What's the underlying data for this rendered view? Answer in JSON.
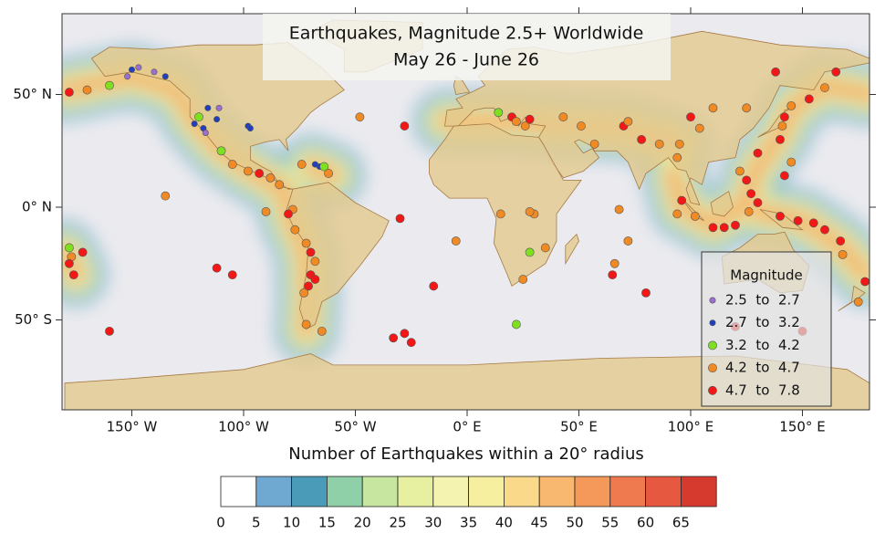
{
  "map": {
    "title": [
      "Earthquakes, Magnitude 2.5+ Worldwide",
      "May 26 - June 26"
    ],
    "lon_ticks": [
      {
        "value": -150,
        "label": "150° W"
      },
      {
        "value": -100,
        "label": "100° W"
      },
      {
        "value": -50,
        "label": "50° W"
      },
      {
        "value": 0,
        "label": "0° E"
      },
      {
        "value": 50,
        "label": "50° E"
      },
      {
        "value": 100,
        "label": "100° E"
      },
      {
        "value": 150,
        "label": "150° E"
      }
    ],
    "lat_ticks": [
      {
        "value": 50,
        "label": "50° N"
      },
      {
        "value": 0,
        "label": "0° N"
      },
      {
        "value": -50,
        "label": "50° S"
      }
    ],
    "legend": {
      "title": "Magnitude",
      "entries": [
        {
          "label": "2.5  to  2.7",
          "color": "#9b6fd0"
        },
        {
          "label": "2.7  to  3.2",
          "color": "#1f3fbf"
        },
        {
          "label": "3.2  to  4.2",
          "color": "#7fe020"
        },
        {
          "label": "4.2  to  4.7",
          "color": "#f08a24"
        },
        {
          "label": "4.7  to  7.8",
          "color": "#f21818"
        }
      ]
    },
    "points": [
      {
        "lon": -178,
        "lat": 51,
        "class": 4
      },
      {
        "lon": -170,
        "lat": 52,
        "class": 3
      },
      {
        "lon": -160,
        "lat": 54,
        "class": 2
      },
      {
        "lon": -152,
        "lat": 58,
        "class": 0
      },
      {
        "lon": -150,
        "lat": 61,
        "class": 1
      },
      {
        "lon": -147,
        "lat": 62,
        "class": 0
      },
      {
        "lon": -140,
        "lat": 60,
        "class": 0
      },
      {
        "lon": -135,
        "lat": 58,
        "class": 1
      },
      {
        "lon": -122,
        "lat": 37,
        "class": 1
      },
      {
        "lon": -118,
        "lat": 35,
        "class": 1
      },
      {
        "lon": -117,
        "lat": 33,
        "class": 0
      },
      {
        "lon": -120,
        "lat": 40,
        "class": 2
      },
      {
        "lon": -116,
        "lat": 44,
        "class": 1
      },
      {
        "lon": -112,
        "lat": 39,
        "class": 1
      },
      {
        "lon": -111,
        "lat": 44,
        "class": 0
      },
      {
        "lon": -98,
        "lat": 36,
        "class": 1
      },
      {
        "lon": -97,
        "lat": 35,
        "class": 1
      },
      {
        "lon": -105,
        "lat": 19,
        "class": 3
      },
      {
        "lon": -98,
        "lat": 16,
        "class": 3
      },
      {
        "lon": -93,
        "lat": 15,
        "class": 4
      },
      {
        "lon": -88,
        "lat": 13,
        "class": 3
      },
      {
        "lon": -84,
        "lat": 10,
        "class": 3
      },
      {
        "lon": -110,
        "lat": 25,
        "class": 2
      },
      {
        "lon": -66,
        "lat": 18,
        "class": 1
      },
      {
        "lon": -64,
        "lat": 18,
        "class": 2
      },
      {
        "lon": -68,
        "lat": 19,
        "class": 1
      },
      {
        "lon": -62,
        "lat": 15,
        "class": 3
      },
      {
        "lon": -74,
        "lat": 19,
        "class": 3
      },
      {
        "lon": -78,
        "lat": -1,
        "class": 3
      },
      {
        "lon": -80,
        "lat": -3,
        "class": 4
      },
      {
        "lon": -77,
        "lat": -10,
        "class": 3
      },
      {
        "lon": -72,
        "lat": -16,
        "class": 3
      },
      {
        "lon": -70,
        "lat": -20,
        "class": 4
      },
      {
        "lon": -68,
        "lat": -24,
        "class": 3
      },
      {
        "lon": -70,
        "lat": -30,
        "class": 4
      },
      {
        "lon": -71,
        "lat": -35,
        "class": 4
      },
      {
        "lon": -73,
        "lat": -38,
        "class": 3
      },
      {
        "lon": -68,
        "lat": -32,
        "class": 4
      },
      {
        "lon": -72,
        "lat": -52,
        "class": 3
      },
      {
        "lon": -65,
        "lat": -55,
        "class": 3
      },
      {
        "lon": -33,
        "lat": -58,
        "class": 4
      },
      {
        "lon": -28,
        "lat": -56,
        "class": 4
      },
      {
        "lon": -30,
        "lat": -5,
        "class": 4
      },
      {
        "lon": -90,
        "lat": -2,
        "class": 3
      },
      {
        "lon": -112,
        "lat": -27,
        "class": 4
      },
      {
        "lon": -105,
        "lat": -30,
        "class": 4
      },
      {
        "lon": -15,
        "lat": -35,
        "class": 4
      },
      {
        "lon": -28,
        "lat": 36,
        "class": 4
      },
      {
        "lon": -48,
        "lat": 40,
        "class": 3
      },
      {
        "lon": -135,
        "lat": 5,
        "class": 3
      },
      {
        "lon": -178,
        "lat": -18,
        "class": 2
      },
      {
        "lon": -177,
        "lat": -22,
        "class": 3
      },
      {
        "lon": -176,
        "lat": -30,
        "class": 4
      },
      {
        "lon": -178,
        "lat": -25,
        "class": 4
      },
      {
        "lon": -172,
        "lat": -20,
        "class": 4
      },
      {
        "lon": 20,
        "lat": 40,
        "class": 4
      },
      {
        "lon": 22,
        "lat": 38,
        "class": 3
      },
      {
        "lon": 26,
        "lat": 36,
        "class": 3
      },
      {
        "lon": 28,
        "lat": 39,
        "class": 4
      },
      {
        "lon": 14,
        "lat": 42,
        "class": 2
      },
      {
        "lon": 43,
        "lat": 40,
        "class": 3
      },
      {
        "lon": 51,
        "lat": 36,
        "class": 3
      },
      {
        "lon": 57,
        "lat": 28,
        "class": 3
      },
      {
        "lon": 70,
        "lat": 36,
        "class": 4
      },
      {
        "lon": 72,
        "lat": 38,
        "class": 3
      },
      {
        "lon": 78,
        "lat": 30,
        "class": 4
      },
      {
        "lon": 86,
        "lat": 28,
        "class": 3
      },
      {
        "lon": 95,
        "lat": 28,
        "class": 3
      },
      {
        "lon": 94,
        "lat": 22,
        "class": 3
      },
      {
        "lon": 100,
        "lat": 40,
        "class": 4
      },
      {
        "lon": 104,
        "lat": 35,
        "class": 3
      },
      {
        "lon": 110,
        "lat": 44,
        "class": 3
      },
      {
        "lon": 125,
        "lat": 44,
        "class": 3
      },
      {
        "lon": 142,
        "lat": 40,
        "class": 4
      },
      {
        "lon": 141,
        "lat": 36,
        "class": 3
      },
      {
        "lon": 140,
        "lat": 30,
        "class": 4
      },
      {
        "lon": 145,
        "lat": 20,
        "class": 3
      },
      {
        "lon": 142,
        "lat": 14,
        "class": 4
      },
      {
        "lon": 130,
        "lat": 24,
        "class": 4
      },
      {
        "lon": 125,
        "lat": 12,
        "class": 4
      },
      {
        "lon": 127,
        "lat": 6,
        "class": 4
      },
      {
        "lon": 122,
        "lat": 16,
        "class": 3
      },
      {
        "lon": 130,
        "lat": 2,
        "class": 4
      },
      {
        "lon": 126,
        "lat": -2,
        "class": 3
      },
      {
        "lon": 120,
        "lat": -8,
        "class": 4
      },
      {
        "lon": 115,
        "lat": -9,
        "class": 4
      },
      {
        "lon": 110,
        "lat": -9,
        "class": 4
      },
      {
        "lon": 102,
        "lat": -4,
        "class": 3
      },
      {
        "lon": 96,
        "lat": 3,
        "class": 4
      },
      {
        "lon": 94,
        "lat": -3,
        "class": 3
      },
      {
        "lon": 140,
        "lat": -4,
        "class": 4
      },
      {
        "lon": 148,
        "lat": -6,
        "class": 4
      },
      {
        "lon": 155,
        "lat": -7,
        "class": 4
      },
      {
        "lon": 160,
        "lat": -10,
        "class": 4
      },
      {
        "lon": 167,
        "lat": -15,
        "class": 4
      },
      {
        "lon": 168,
        "lat": -21,
        "class": 3
      },
      {
        "lon": 178,
        "lat": -33,
        "class": 4
      },
      {
        "lon": 175,
        "lat": -42,
        "class": 3
      },
      {
        "lon": 145,
        "lat": 45,
        "class": 3
      },
      {
        "lon": 153,
        "lat": 48,
        "class": 4
      },
      {
        "lon": 160,
        "lat": 53,
        "class": 3
      },
      {
        "lon": 165,
        "lat": 60,
        "class": 4
      },
      {
        "lon": 138,
        "lat": 60,
        "class": 4
      },
      {
        "lon": 65,
        "lat": -30,
        "class": 4
      },
      {
        "lon": 80,
        "lat": -38,
        "class": 4
      },
      {
        "lon": 72,
        "lat": -15,
        "class": 3
      },
      {
        "lon": 68,
        "lat": -1,
        "class": 3
      },
      {
        "lon": -25,
        "lat": -60,
        "class": 4
      },
      {
        "lon": -160,
        "lat": -55,
        "class": 4
      },
      {
        "lon": 150,
        "lat": -55,
        "class": 4
      },
      {
        "lon": 120,
        "lat": -53,
        "class": 4
      },
      {
        "lon": 28,
        "lat": -20,
        "class": 2
      },
      {
        "lon": 25,
        "lat": -32,
        "class": 3
      },
      {
        "lon": 35,
        "lat": -18,
        "class": 3
      },
      {
        "lon": 22,
        "lat": -52,
        "class": 2
      },
      {
        "lon": -5,
        "lat": -15,
        "class": 3
      },
      {
        "lon": 66,
        "lat": -25,
        "class": 3
      },
      {
        "lon": 30,
        "lat": -3,
        "class": 3
      },
      {
        "lon": 15,
        "lat": -3,
        "class": 3
      },
      {
        "lon": 28,
        "lat": -2,
        "class": 3
      }
    ],
    "colorbar": {
      "title": "Number of Earthquakes within a 20° radius",
      "ticks": [
        0,
        5,
        10,
        15,
        20,
        25,
        30,
        35,
        40,
        45,
        50,
        55,
        60,
        65
      ],
      "colors": [
        "#ffffff",
        "#6fa8d0",
        "#4a9bb8",
        "#90d0a8",
        "#c7e6a0",
        "#e6f0a0",
        "#f5f3b0",
        "#f7efa0",
        "#fbd98a",
        "#f9b870",
        "#f5995b",
        "#f07a4f",
        "#e65840",
        "#d63a2e"
      ]
    }
  }
}
